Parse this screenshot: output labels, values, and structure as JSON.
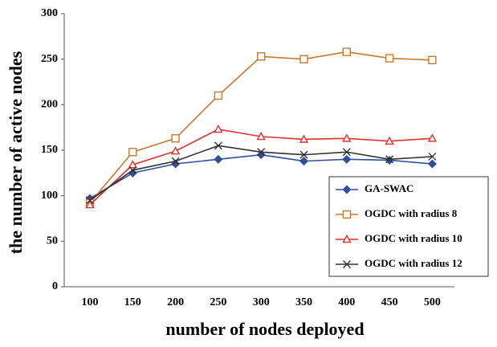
{
  "chart_data": {
    "type": "line",
    "xlabel": "number of nodes deployed",
    "ylabel": "the number of active nodes",
    "categories": [
      "100",
      "150",
      "200",
      "250",
      "300",
      "350",
      "400",
      "450",
      "500"
    ],
    "series": [
      {
        "name": "GA-SWAC",
        "color": "#2e4e9e",
        "marker": "diamond",
        "values": [
          97,
          125,
          135,
          140,
          145,
          138,
          140,
          139,
          135
        ]
      },
      {
        "name": "OGDC with radius 8",
        "color": "#c8782a",
        "marker": "square",
        "values": [
          92,
          148,
          163,
          210,
          253,
          250,
          258,
          251,
          249
        ]
      },
      {
        "name": "OGDC with radius 10",
        "color": "#e03030",
        "marker": "triangle",
        "values": [
          90,
          134,
          149,
          173,
          165,
          162,
          163,
          160,
          163
        ]
      },
      {
        "name": "OGDC with radius 12",
        "color": "#333333",
        "marker": "x",
        "values": [
          95,
          128,
          138,
          155,
          148,
          145,
          148,
          140,
          143
        ]
      }
    ],
    "ylim": [
      0,
      300
    ],
    "yticks": [
      0,
      50,
      100,
      150,
      200,
      250,
      300
    ],
    "grid": false,
    "legend": "lower right"
  }
}
